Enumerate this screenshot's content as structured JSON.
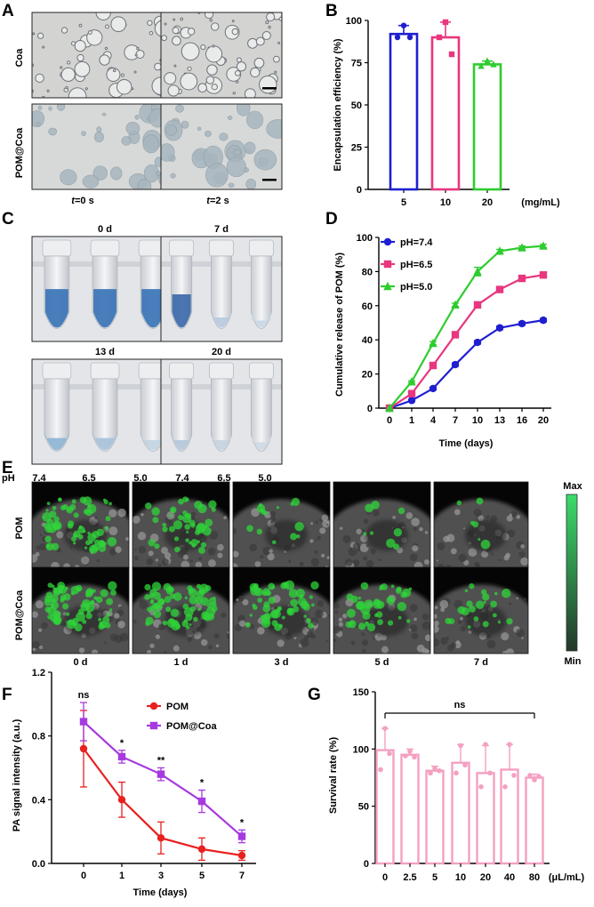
{
  "panels": {
    "A": {
      "letter": "A",
      "rows": [
        "Coa",
        "POM@Coa"
      ],
      "time_prefix": "t",
      "times": [
        "=0 s",
        "=2 s"
      ]
    },
    "C": {
      "letter": "C",
      "days": [
        "0 d",
        "7 d",
        "13 d",
        "20 d"
      ],
      "ph_label": "pH",
      "ph_values": [
        "7.4",
        "6.5",
        "5.0",
        "7.4",
        "6.5",
        "5.0"
      ]
    },
    "E": {
      "letter": "E",
      "rows": [
        "POM",
        "POM@Coa"
      ],
      "days": [
        "0 d",
        "1 d",
        "3 d",
        "5 d",
        "7 d"
      ],
      "scale_max": "Max",
      "scale_min": "Min"
    }
  },
  "chart_data": [
    {
      "id": "B",
      "letter": "B",
      "type": "bar",
      "categories": [
        "5",
        "10",
        "20"
      ],
      "unit_label": "(mg/mL)",
      "values": [
        92,
        90,
        74
      ],
      "errors": [
        5,
        9,
        2
      ],
      "points": [
        [
          97,
          90,
          90
        ],
        [
          99,
          90,
          80
        ],
        [
          76,
          73,
          74
        ]
      ],
      "colors": [
        "#1f1fd1",
        "#e8367f",
        "#2fcc2f"
      ],
      "ylabel": "Encapsulation efficiency (%)",
      "ylim": [
        0,
        100
      ],
      "yticks": [
        0,
        25,
        50,
        75,
        100
      ]
    },
    {
      "id": "D",
      "letter": "D",
      "type": "line",
      "x": [
        "0",
        "1",
        "4",
        "7",
        "10",
        "13",
        "16",
        "20"
      ],
      "series": [
        {
          "name": "pH=7.4",
          "color": "#1f1fd1",
          "marker": "circle",
          "values": [
            0,
            4.5,
            11.5,
            25.5,
            38.5,
            47,
            49.5,
            51.5
          ],
          "errors": [
            0,
            0.5,
            0.8,
            1,
            1,
            1,
            1,
            1
          ]
        },
        {
          "name": "pH=6.5",
          "color": "#e8367f",
          "marker": "square",
          "values": [
            0,
            8.5,
            25,
            43,
            60.5,
            69.5,
            76,
            78
          ],
          "errors": [
            0,
            0.5,
            0.8,
            1,
            1,
            1,
            1,
            1
          ]
        },
        {
          "name": "pH=5.0",
          "color": "#2fcc2f",
          "marker": "triangle",
          "values": [
            0,
            15.5,
            38,
            60.5,
            80,
            92,
            94,
            95
          ],
          "errors": [
            0,
            0.5,
            1,
            1,
            2.5,
            1,
            1,
            1
          ]
        }
      ],
      "xlabel": "Time (days)",
      "ylabel": "Cumulative release of POM (%)",
      "ylim": [
        0,
        100
      ],
      "yticks": [
        0,
        20,
        40,
        60,
        80,
        100
      ]
    },
    {
      "id": "F",
      "letter": "F",
      "type": "line",
      "x": [
        "0",
        "1",
        "3",
        "5",
        "7"
      ],
      "series": [
        {
          "name": "POM",
          "color": "#e8201f",
          "marker": "circle",
          "values": [
            0.72,
            0.4,
            0.16,
            0.09,
            0.05
          ],
          "errors": [
            0.24,
            0.11,
            0.1,
            0.07,
            0.03
          ]
        },
        {
          "name": "POM@Coa",
          "color": "#a63ae0",
          "marker": "square",
          "values": [
            0.89,
            0.67,
            0.56,
            0.39,
            0.17
          ],
          "errors": [
            0.12,
            0.04,
            0.04,
            0.07,
            0.04
          ]
        }
      ],
      "significance": [
        "ns",
        "*",
        "**",
        "*",
        "*"
      ],
      "xlabel": "Time (days)",
      "ylabel": "PA signal intensity (a.u.)",
      "ylim": [
        0,
        1.2
      ],
      "yticks": [
        "0.0",
        "0.4",
        "0.8",
        "1.2"
      ]
    },
    {
      "id": "G",
      "letter": "G",
      "type": "bar",
      "categories": [
        "0",
        "2.5",
        "5",
        "10",
        "20",
        "40",
        "80"
      ],
      "unit_label": "(μL/mL)",
      "values": [
        99,
        95,
        81,
        88,
        79,
        82,
        75
      ],
      "errors": [
        19,
        5,
        4,
        16,
        24,
        22,
        3
      ],
      "points": [
        [
          118,
          82,
          96
        ],
        [
          98,
          94,
          93
        ],
        [
          83,
          79,
          81
        ],
        [
          103,
          79,
          86
        ],
        [
          104,
          67,
          79
        ],
        [
          104,
          67,
          77
        ],
        [
          73,
          77,
          76
        ]
      ],
      "color": "#f4a0c2",
      "ylabel": "Survival rate (%)",
      "ylim": [
        0,
        150
      ],
      "yticks": [
        0,
        50,
        100,
        150
      ],
      "significance": "ns"
    }
  ]
}
